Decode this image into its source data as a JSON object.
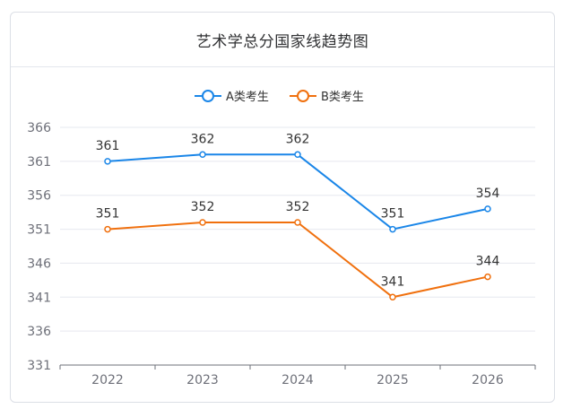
{
  "title": "艺术学总分国家线趋势图",
  "chart_data": {
    "type": "line",
    "categories": [
      "2022",
      "2023",
      "2024",
      "2025",
      "2026"
    ],
    "series": [
      {
        "name": "A类考生",
        "values": [
          361,
          362,
          362,
          351,
          354
        ],
        "color": "#1a86e8"
      },
      {
        "name": "B类考生",
        "values": [
          351,
          352,
          352,
          341,
          344
        ],
        "color": "#f0700e"
      }
    ],
    "yticks": [
      331,
      336,
      341,
      346,
      351,
      356,
      361,
      366
    ],
    "ylim": [
      331,
      366
    ],
    "grid": true,
    "legend_position": "top-center",
    "show_data_labels": true
  },
  "colors": {
    "grid": "#e6e8ef",
    "axis": "#6e7079",
    "tick_text": "#6e7079",
    "label_text": "#333333"
  }
}
